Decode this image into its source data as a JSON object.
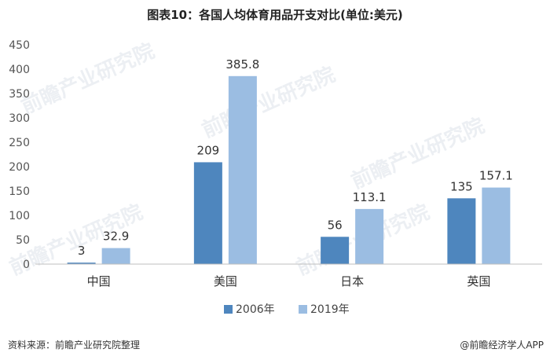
{
  "title": "图表10：各国人均体育用品开支对比(单位:美元)",
  "source": "资料来源：前瞻产业研究院整理",
  "credit": "@前瞻经济学人APP",
  "watermark": "前瞻产业研究院",
  "colors": {
    "series_2006": "#4e86be",
    "series_2019": "#9bbde2",
    "axis": "#bfbfbf"
  },
  "chart_data": {
    "type": "bar",
    "title": "图表10：各国人均体育用品开支对比(单位:美元)",
    "categories": [
      "中国",
      "美国",
      "日本",
      "英国"
    ],
    "series": [
      {
        "name": "2006年",
        "values": [
          3,
          209,
          56,
          135
        ],
        "labels": [
          "3",
          "209",
          "56",
          "135"
        ]
      },
      {
        "name": "2019年",
        "values": [
          32.9,
          385.8,
          113.1,
          157.1
        ],
        "labels": [
          "32.9",
          "385.8",
          "113.1",
          "157.1"
        ]
      }
    ],
    "ylim": [
      0,
      450
    ],
    "yticks": [
      "0",
      "50",
      "100",
      "150",
      "200",
      "250",
      "300",
      "350",
      "400",
      "450"
    ],
    "grid": false,
    "legend": "bottom",
    "xlabel": "",
    "ylabel": ""
  }
}
